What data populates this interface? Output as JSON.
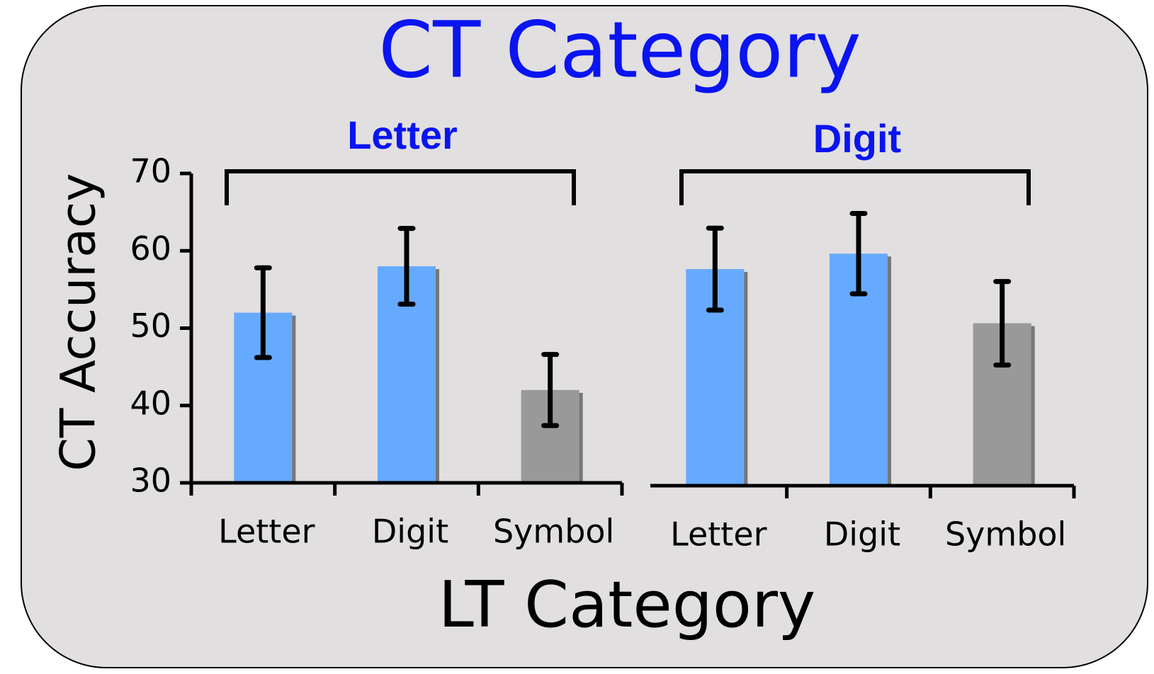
{
  "title": "CT Category",
  "x_label": "LT Category",
  "y_label": "CT Accuracy",
  "chart_data": [
    {
      "type": "bar",
      "title": "Letter",
      "categories": [
        "Letter",
        "Digit",
        "Symbol"
      ],
      "values": [
        52,
        58,
        42
      ],
      "errors": [
        5.8,
        4.9,
        4.6
      ],
      "colors": [
        "#66aaff",
        "#66aaff",
        "#999999"
      ],
      "ylim": [
        30,
        70
      ],
      "yticks": [
        30,
        40,
        50,
        60,
        70
      ]
    },
    {
      "type": "bar",
      "title": "Digit",
      "categories": [
        "Letter",
        "Digit",
        "Symbol"
      ],
      "values": [
        58,
        60,
        51
      ],
      "errors": [
        5.3,
        5.2,
        5.4
      ],
      "colors": [
        "#66aaff",
        "#66aaff",
        "#999999"
      ],
      "ylim": [
        30,
        70
      ]
    }
  ]
}
